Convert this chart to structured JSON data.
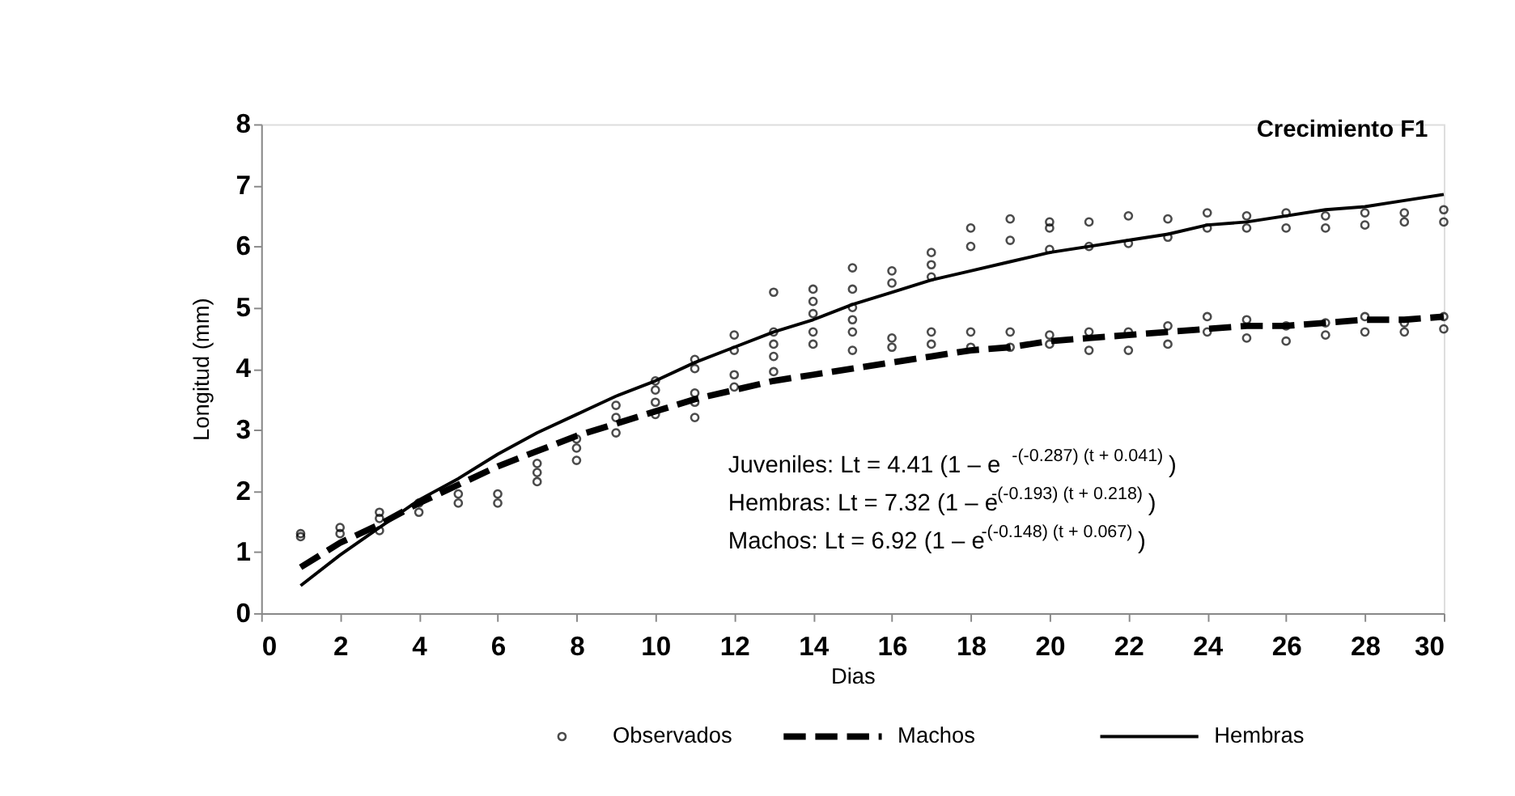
{
  "chart_data": {
    "type": "scatter",
    "title": "Crecimiento F1",
    "xlabel": "Dias",
    "ylabel": "Longitud (mm)",
    "xlim": [
      0,
      30
    ],
    "xticks": [
      0,
      2,
      4,
      6,
      8,
      10,
      12,
      14,
      16,
      18,
      20,
      22,
      24,
      26,
      28,
      30
    ],
    "ylim": [
      0,
      8
    ],
    "yticks": [
      0,
      1,
      2,
      3,
      4,
      5,
      6,
      7,
      8
    ],
    "grid": false,
    "legend": "bottom",
    "annotations": [
      "Juveniles: Lt = 4.41 (1 – e$^{-(-0.287) (t + 0.041)}$)",
      "Hembras: Lt = 7.32 (1 – e$^{-(-0.193) (t + 0.218)}$)",
      "Machos: Lt = 6.92 (1 – e$^{-(-0.148) (t + 0.067)}$)"
    ],
    "series": [
      {
        "name": "Observados",
        "marker": "circle",
        "color": "#000000",
        "x": [
          1,
          1,
          2,
          2,
          3,
          3,
          3,
          4,
          4,
          5,
          5,
          6,
          6,
          7,
          7,
          7,
          8,
          8,
          8,
          9,
          9,
          9,
          10,
          10,
          10,
          10,
          11,
          11,
          11,
          11,
          11,
          12,
          12,
          12,
          12,
          13,
          13,
          13,
          13,
          13,
          14,
          14,
          14,
          14,
          14,
          15,
          15,
          15,
          15,
          15,
          15,
          16,
          16,
          16,
          16,
          17,
          17,
          17,
          17,
          17,
          18,
          18,
          18,
          18,
          19,
          19,
          19,
          19,
          20,
          20,
          20,
          20,
          20,
          21,
          21,
          21,
          21,
          22,
          22,
          22,
          22,
          23,
          23,
          23,
          23,
          24,
          24,
          24,
          24,
          25,
          25,
          25,
          25,
          26,
          26,
          26,
          26,
          27,
          27,
          27,
          27,
          28,
          28,
          28,
          28,
          29,
          29,
          29,
          29,
          30,
          30,
          30,
          30
        ],
        "values": [
          1.25,
          1.3,
          1.3,
          1.4,
          1.35,
          1.55,
          1.65,
          1.65,
          1.8,
          1.8,
          1.95,
          1.8,
          1.95,
          2.15,
          2.3,
          2.45,
          2.5,
          2.7,
          2.85,
          2.95,
          3.2,
          3.4,
          3.25,
          3.45,
          3.65,
          3.8,
          3.2,
          3.45,
          3.6,
          4.0,
          4.15,
          3.7,
          3.9,
          4.3,
          4.55,
          3.95,
          4.2,
          4.4,
          4.6,
          5.25,
          4.4,
          4.6,
          4.9,
          5.1,
          5.3,
          4.3,
          4.6,
          4.8,
          5.0,
          5.3,
          5.65,
          4.35,
          4.5,
          5.4,
          5.6,
          4.4,
          4.6,
          5.5,
          5.7,
          5.9,
          4.35,
          4.6,
          6.0,
          6.3,
          4.35,
          4.6,
          6.1,
          6.45,
          4.4,
          4.55,
          5.95,
          6.3,
          6.4,
          4.3,
          4.6,
          6.0,
          6.4,
          4.3,
          4.6,
          6.05,
          6.5,
          4.4,
          4.7,
          6.15,
          6.45,
          4.6,
          4.85,
          6.3,
          6.55,
          4.5,
          4.8,
          6.3,
          6.5,
          4.45,
          4.7,
          6.3,
          6.55,
          4.55,
          4.75,
          6.3,
          6.5,
          4.6,
          4.85,
          6.35,
          6.55,
          4.6,
          4.75,
          6.4,
          6.55,
          4.65,
          4.85,
          6.4,
          6.6
        ]
      },
      {
        "name": "Machos",
        "type": "line",
        "line_style": "dashed",
        "color": "#000000",
        "x": [
          1,
          2,
          3,
          4,
          5,
          6,
          7,
          8,
          9,
          10,
          11,
          12,
          13,
          14,
          15,
          16,
          17,
          18,
          19,
          20,
          21,
          22,
          23,
          24,
          25,
          26,
          27,
          28,
          29,
          30
        ],
        "values": [
          0.75,
          1.15,
          1.45,
          1.8,
          2.1,
          2.4,
          2.65,
          2.9,
          3.1,
          3.3,
          3.5,
          3.65,
          3.8,
          3.9,
          4.0,
          4.1,
          4.2,
          4.3,
          4.35,
          4.45,
          4.5,
          4.55,
          4.6,
          4.65,
          4.7,
          4.7,
          4.75,
          4.8,
          4.8,
          4.85
        ]
      },
      {
        "name": "Hembras",
        "type": "line",
        "line_style": "solid",
        "color": "#000000",
        "x": [
          1,
          2,
          3,
          4,
          5,
          6,
          7,
          8,
          9,
          10,
          11,
          12,
          13,
          14,
          15,
          16,
          17,
          18,
          19,
          20,
          21,
          22,
          23,
          24,
          25,
          26,
          27,
          28,
          29,
          30
        ],
        "values": [
          0.45,
          0.95,
          1.4,
          1.85,
          2.2,
          2.6,
          2.95,
          3.25,
          3.55,
          3.8,
          4.1,
          4.35,
          4.6,
          4.8,
          5.05,
          5.25,
          5.45,
          5.6,
          5.75,
          5.9,
          6.0,
          6.1,
          6.2,
          6.35,
          6.4,
          6.5,
          6.6,
          6.65,
          6.75,
          6.85
        ]
      }
    ]
  }
}
